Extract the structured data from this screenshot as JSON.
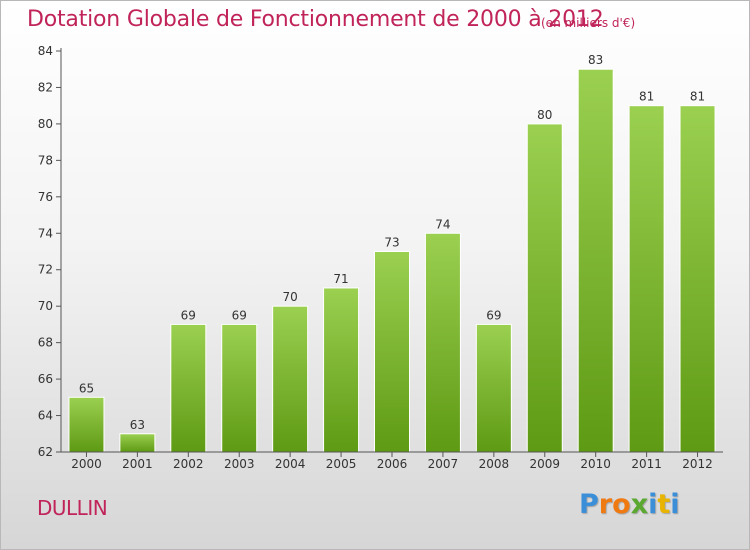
{
  "title": "Dotation Globale de Fonctionnement de 2000 à 2012",
  "subtitle": "(en milliers d'€)",
  "place": "DULLIN",
  "brand": {
    "letters": [
      "P",
      "r",
      "o",
      "x",
      "i",
      "t",
      "i"
    ],
    "colors": [
      "#3b8fd8",
      "#f07a12",
      "#f07a12",
      "#5aa830",
      "#3b8fd8",
      "#e8b400",
      "#3b8fd8"
    ]
  },
  "colors": {
    "bar_top": "#9bd050",
    "bar_bottom": "#5e9a14",
    "axis": "#555555",
    "grid": "#d8d8d8"
  },
  "chart_data": {
    "type": "bar",
    "title": "Dotation Globale de Fonctionnement de 2000 à 2012",
    "subtitle": "(en milliers d'€)",
    "categories": [
      "2000",
      "2001",
      "2002",
      "2003",
      "2004",
      "2005",
      "2006",
      "2007",
      "2008",
      "2009",
      "2010",
      "2011",
      "2012"
    ],
    "values": [
      65,
      63,
      69,
      69,
      70,
      71,
      73,
      74,
      69,
      80,
      83,
      81,
      81
    ],
    "data_labels": [
      "65",
      "63",
      "69",
      "69",
      "70",
      "71",
      "73",
      "74",
      "69",
      "80",
      "83",
      "81",
      "81"
    ],
    "yticks": [
      "62",
      "64",
      "66",
      "68",
      "70",
      "72",
      "74",
      "76",
      "78",
      "80",
      "82",
      "84"
    ],
    "ylim": [
      62,
      84
    ],
    "xlabel": "",
    "ylabel": "",
    "grid": false,
    "legend": "none"
  }
}
